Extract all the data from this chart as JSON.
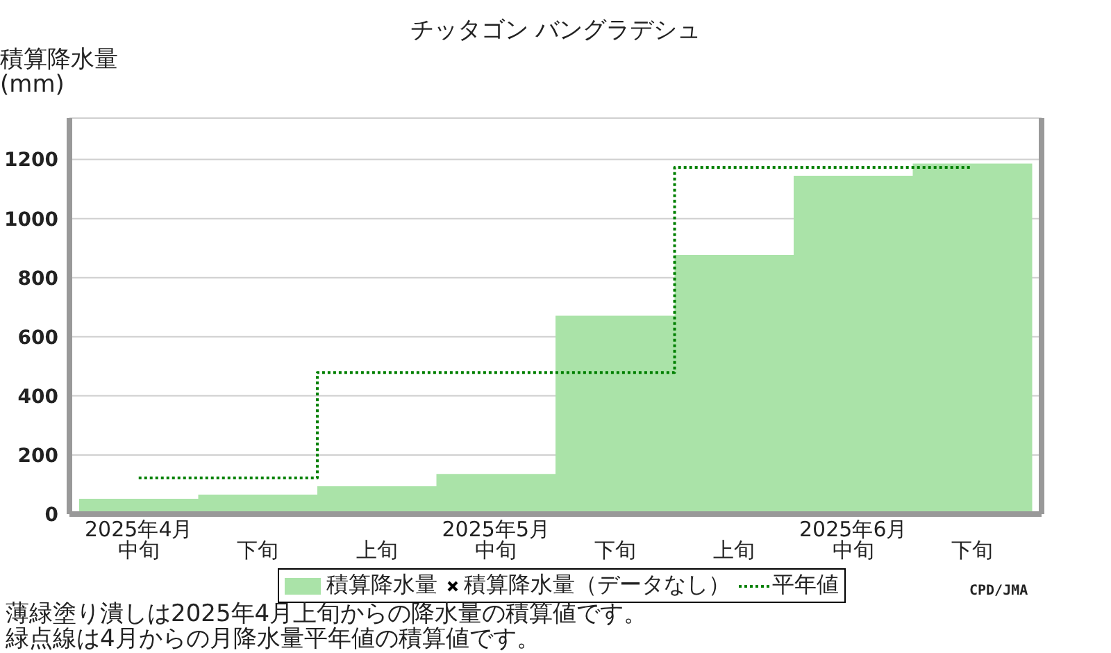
{
  "chart_data": {
    "type": "bar",
    "title": "チッタゴン バングラデシュ",
    "ylabel": "積算降水量(mm)",
    "categories": [
      "2025年4月中旬",
      "下旬",
      "上旬",
      "2025年5月中旬",
      "下旬",
      "上旬",
      "2025年6月中旬",
      "下旬"
    ],
    "series": [
      {
        "name": "積算降水量",
        "color": "#aae3a8",
        "values": [
          52,
          66,
          94,
          136,
          671,
          877,
          1145,
          1186
        ]
      },
      {
        "name": "積算降水量（データなし）",
        "type": "scatter",
        "marker": "cross",
        "color": "#000000",
        "values": [
          null,
          null,
          null,
          null,
          null,
          null,
          null,
          null
        ]
      },
      {
        "name": "平年値",
        "type": "step",
        "marker": "none",
        "line_style": "dotted",
        "color": "#008000",
        "values": [
          122,
          122,
          479,
          479,
          479,
          1173,
          1173,
          1173
        ]
      }
    ],
    "ylim": [
      0,
      1340
    ],
    "yticks": [
      0,
      200,
      400,
      600,
      800,
      1000,
      1200
    ],
    "grid": "y",
    "legend": "bottom",
    "annotations": [
      "薄緑塗り潰しは2025年4月上旬からの降水量の積算値です。",
      "緑点線は4月からの月降水量平年値の積算値です。",
      "CPD/JMA"
    ]
  }
}
